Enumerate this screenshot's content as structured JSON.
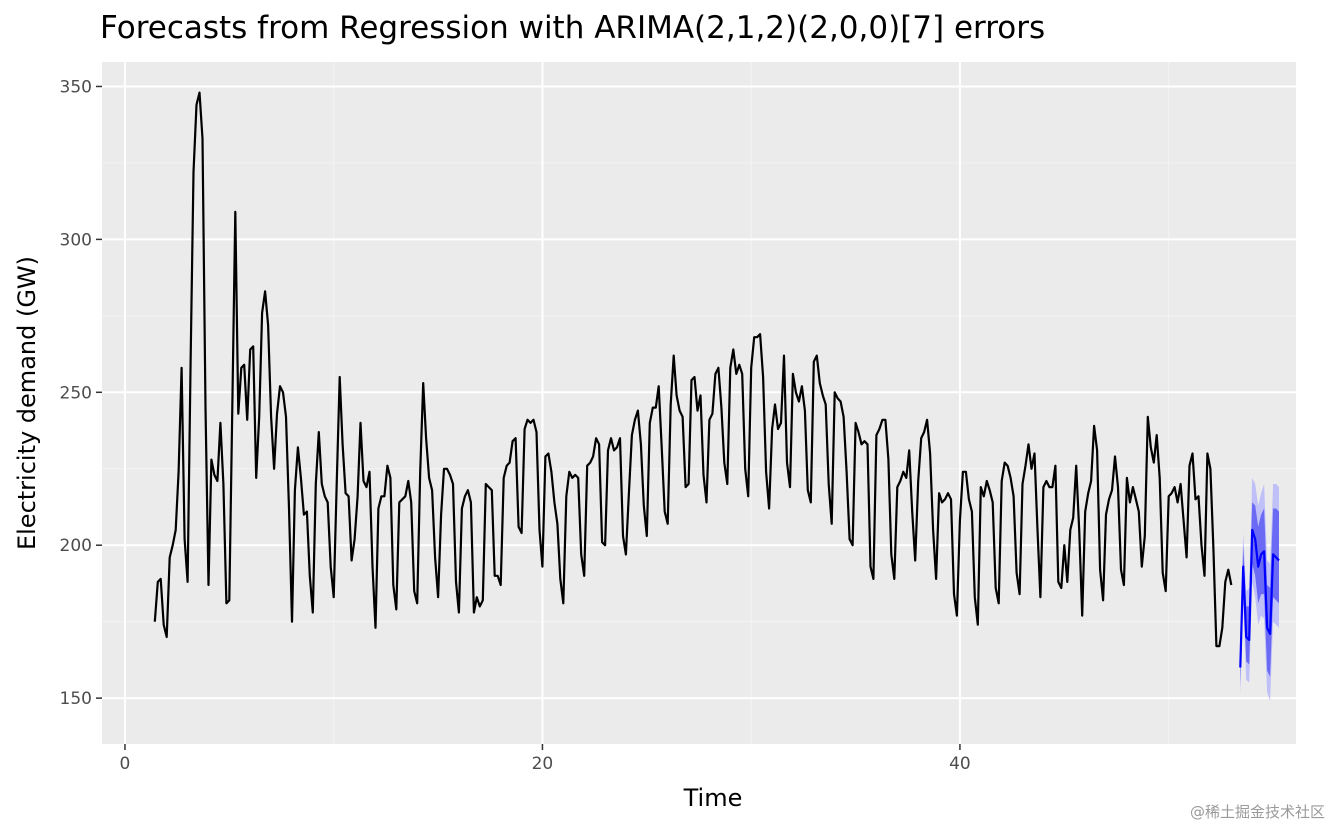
{
  "chart_data": {
    "type": "line",
    "title": "Forecasts from Regression with ARIMA(2,1,2)(2,0,0)[7] errors",
    "xlabel": "Time",
    "ylabel": "Electricity demand (GW)",
    "xlim": [
      -1.1,
      56.1
    ],
    "ylim": [
      135,
      358
    ],
    "x_ticks": [
      0,
      20,
      40
    ],
    "x_tick_labels": [
      "0",
      "20",
      "40"
    ],
    "y_ticks": [
      150,
      200,
      250,
      300,
      350
    ],
    "y_tick_labels": [
      "150",
      "200",
      "250",
      "300",
      "350"
    ],
    "grid": true,
    "legend": "none",
    "colors": {
      "panel": "#ebebeb",
      "grid_major": "#ffffff",
      "grid_minor": "#f4f4f4",
      "series": "#000000",
      "forecast": "#0000ff",
      "band80": "#5b5bf5",
      "band95": "#b9b9fb"
    },
    "series": [
      {
        "role": "observed",
        "x_start": 1.4286,
        "x_step": 0.142857,
        "values": [
          175,
          188,
          189,
          174,
          170,
          196,
          200,
          205,
          224,
          258,
          202,
          188,
          260,
          322,
          344,
          348,
          333,
          245,
          187,
          228,
          223,
          221,
          240,
          220,
          181,
          182,
          245,
          309,
          243,
          258,
          259,
          241,
          264,
          265,
          222,
          242,
          276,
          283,
          272,
          242,
          225,
          243,
          252,
          250,
          242,
          212,
          175,
          218,
          232,
          222,
          210,
          211,
          190,
          178,
          220,
          237,
          220,
          216,
          214,
          193,
          183,
          220,
          255,
          233,
          217,
          216,
          195,
          202,
          216,
          240,
          221,
          219,
          224,
          193,
          173,
          212,
          216,
          216,
          226,
          222,
          187,
          179,
          214,
          215,
          216,
          221,
          214,
          185,
          181,
          224,
          253,
          235,
          222,
          218,
          196,
          183,
          210,
          225,
          225,
          223,
          220,
          188,
          178,
          212,
          216,
          218,
          214,
          178,
          183,
          180,
          182,
          220,
          219,
          218,
          190,
          190,
          187,
          222,
          226,
          227,
          234,
          235,
          206,
          204,
          238,
          241,
          240,
          241,
          237,
          205,
          193,
          229,
          230,
          224,
          214,
          207,
          189,
          181,
          216,
          224,
          222,
          223,
          222,
          197,
          190,
          226,
          227,
          229,
          235,
          233,
          201,
          200,
          231,
          235,
          231,
          232,
          235,
          203,
          197,
          217,
          236,
          241,
          244,
          233,
          213,
          203,
          240,
          245,
          245,
          252,
          232,
          211,
          207,
          246,
          262,
          249,
          244,
          242,
          219,
          220,
          254,
          255,
          244,
          249,
          223,
          214,
          241,
          243,
          256,
          258,
          245,
          227,
          220,
          258,
          264,
          256,
          259,
          256,
          225,
          216,
          258,
          268,
          268,
          269,
          255,
          224,
          212,
          238,
          246,
          238,
          240,
          262,
          227,
          219,
          256,
          250,
          247,
          252,
          244,
          218,
          214,
          260,
          262,
          253,
          249,
          246,
          220,
          207,
          250,
          248,
          247,
          242,
          224,
          202,
          200,
          240,
          237,
          233,
          234,
          233,
          193,
          189,
          236,
          238,
          241,
          241,
          228,
          197,
          189,
          219,
          221,
          224,
          222,
          231,
          211,
          195,
          221,
          235,
          237,
          241,
          230,
          205,
          189,
          217,
          214,
          215,
          217,
          215,
          184,
          177,
          208,
          224,
          224,
          215,
          211,
          183,
          174,
          219,
          216,
          221,
          218,
          214,
          186,
          181,
          221,
          227,
          226,
          222,
          216,
          191,
          184,
          220,
          226,
          233,
          225,
          230,
          205,
          183,
          219,
          221,
          219,
          219,
          226,
          188,
          186,
          200,
          188,
          205,
          209,
          226,
          205,
          177,
          211,
          217,
          221,
          239,
          231,
          192,
          182,
          210,
          215,
          218,
          229,
          219,
          192,
          187,
          222,
          214,
          219,
          215,
          211,
          193,
          203,
          242,
          232,
          227,
          236,
          222,
          191,
          185,
          216,
          217,
          219,
          214,
          220,
          208,
          196,
          226,
          230,
          215,
          216,
          200,
          190,
          230,
          225,
          199,
          167,
          167,
          173,
          188,
          192,
          187
        ]
      },
      {
        "role": "forecast",
        "x_start": 53.43,
        "x_step": 0.142857,
        "values": [
          160,
          193,
          170,
          169,
          205,
          202,
          193,
          197,
          198,
          173,
          171,
          197,
          196,
          195
        ],
        "lower80": [
          154,
          186,
          162,
          161,
          194,
          190,
          181,
          184,
          184,
          159,
          157,
          183,
          182,
          181
        ],
        "upper80": [
          166,
          200,
          180,
          180,
          214,
          213,
          206,
          210,
          212,
          187,
          186,
          212,
          212,
          211
        ],
        "lower95": [
          151,
          181,
          156,
          155,
          188,
          183,
          174,
          177,
          176,
          152,
          149,
          175,
          174,
          173
        ],
        "upper95": [
          169,
          204,
          185,
          186,
          222,
          220,
          213,
          217,
          220,
          195,
          194,
          220,
          220,
          219
        ]
      }
    ]
  },
  "watermark": "@稀土掘金技术社区"
}
